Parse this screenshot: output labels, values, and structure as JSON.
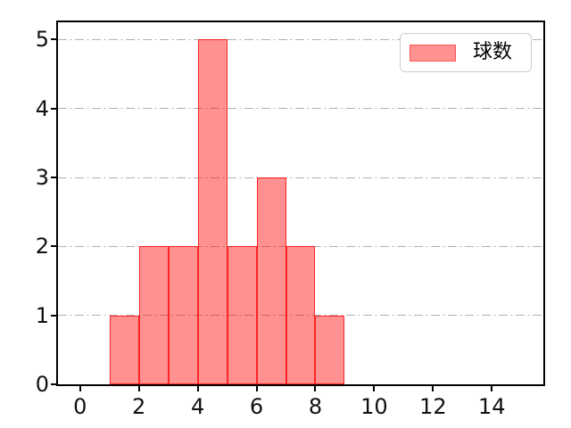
{
  "figure": {
    "background_color": "#ffffff"
  },
  "chart_data": {
    "type": "bar",
    "subtype": "histogram",
    "title": "",
    "xlabel": "",
    "ylabel": "",
    "bin_edges": [
      1,
      2,
      3,
      4,
      5,
      6,
      7,
      8,
      9
    ],
    "values": [
      1,
      2,
      2,
      5,
      2,
      3,
      2,
      1
    ],
    "xticks": [
      0,
      2,
      4,
      6,
      8,
      10,
      12,
      14
    ],
    "xtick_labels": [
      "0",
      "2",
      "4",
      "6",
      "8",
      "10",
      "12",
      "14"
    ],
    "yticks": [
      0,
      1,
      2,
      3,
      4,
      5
    ],
    "ytick_labels": [
      "0",
      "1",
      "2",
      "3",
      "4",
      "5"
    ],
    "xlim": [
      -0.75,
      15.75
    ],
    "ylim": [
      0,
      5.25
    ],
    "grid": {
      "enabled": true,
      "axis": "y",
      "style": "dash-dot",
      "color": "#b0b0b0"
    },
    "legend": {
      "position": "upper right",
      "label": "球数"
    },
    "colors": {
      "bar_fill": "#ff9191",
      "bar_fill_rgba": "rgba(255,0,0,0.43)",
      "bar_edge": "#fa4040",
      "bar_edge_rgba": "rgba(255,0,0,0.75)",
      "spine": "#000000",
      "tick_label": "#111111",
      "gridline": "#b0b0b0",
      "legend_border": "#cccccc"
    }
  }
}
